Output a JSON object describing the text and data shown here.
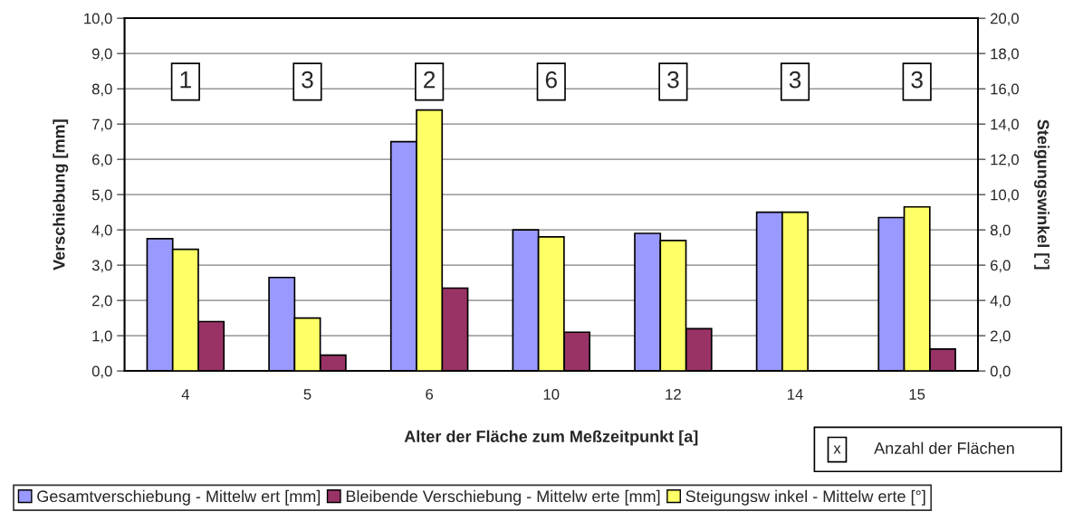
{
  "chart_data": {
    "type": "bar",
    "xlabel": "Alter der Fläche zum Meßzeitpunkt [a]",
    "ylabel": "Verschiebung [mm]",
    "y2label": "Steigungswinkel [°]",
    "categories": [
      "4",
      "5",
      "6",
      "10",
      "12",
      "14",
      "15"
    ],
    "series": [
      {
        "name": "Gesamtverschiebung - Mittelw ert [mm]",
        "color": "#9999ff",
        "values": [
          3.75,
          2.65,
          6.5,
          4.0,
          3.9,
          4.5,
          4.35
        ]
      },
      {
        "name": "Bleibende Verschiebung - Mittelw erte [mm]",
        "color": "#993366",
        "values": [
          1.4,
          0.45,
          2.35,
          1.1,
          1.2,
          null,
          0.62
        ]
      },
      {
        "name": "Steigungsw inkel - Mittelw erte [°]",
        "color": "#ffff66",
        "axis": "y2",
        "values": [
          6.9,
          3.0,
          14.8,
          7.6,
          7.4,
          9.0,
          9.3
        ]
      }
    ],
    "ylim": [
      0,
      10
    ],
    "yticks": [
      {
        "value": 0,
        "label": "0,0"
      },
      {
        "value": 1,
        "label": "1,0"
      },
      {
        "value": 2,
        "label": "2,0"
      },
      {
        "value": 3,
        "label": "3,0"
      },
      {
        "value": 4,
        "label": "4,0"
      },
      {
        "value": 5,
        "label": "5,0"
      },
      {
        "value": 6,
        "label": "6,0"
      },
      {
        "value": 7,
        "label": "7,0"
      },
      {
        "value": 8,
        "label": "8,0"
      },
      {
        "value": 9,
        "label": "9,0"
      },
      {
        "value": 10,
        "label": "10,0"
      }
    ],
    "y2lim": [
      0,
      20
    ],
    "y2ticks": [
      {
        "value": 0,
        "label": "0,0"
      },
      {
        "value": 2,
        "label": "2,0"
      },
      {
        "value": 4,
        "label": "4,0"
      },
      {
        "value": 6,
        "label": "6,0"
      },
      {
        "value": 8,
        "label": "8,0"
      },
      {
        "value": 10,
        "label": "10,0"
      },
      {
        "value": 12,
        "label": "12,0"
      },
      {
        "value": 14,
        "label": "14,0"
      },
      {
        "value": 16,
        "label": "16,0"
      },
      {
        "value": 18,
        "label": "18,0"
      },
      {
        "value": 20,
        "label": "20,0"
      }
    ],
    "grid": "y",
    "legend": "bottom",
    "annotations": [
      "1",
      "3",
      "2",
      "6",
      "3",
      "3",
      "3",
      "x",
      "Anzahl der Flächen"
    ]
  }
}
